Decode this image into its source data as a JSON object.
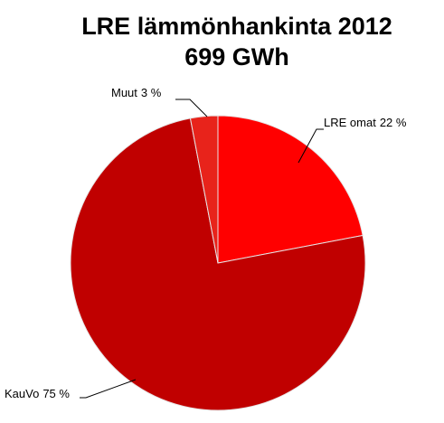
{
  "chart_data": {
    "type": "pie",
    "title": "LRE lämmönhankinta  2012",
    "subtitle": "699 GWh",
    "categories": [
      "LRE omat",
      "KauVo",
      "Muut"
    ],
    "values": [
      22,
      75,
      3
    ],
    "value_labels": [
      "22 %",
      "75 %",
      "3 %"
    ],
    "colors": [
      "#ff0000",
      "#c00000",
      "#e8231b"
    ]
  }
}
